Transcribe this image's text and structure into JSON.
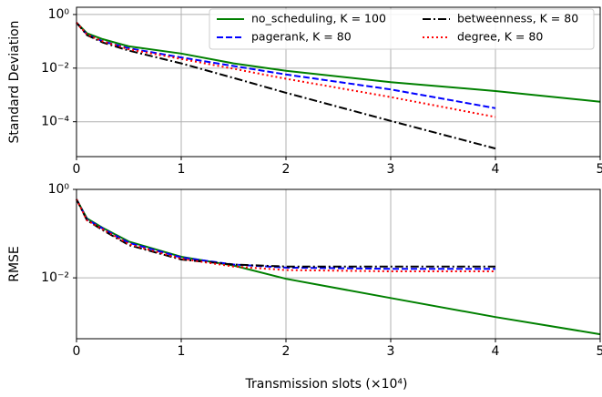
{
  "chart_data": [
    {
      "type": "line",
      "ylabel": "Standard Deviation",
      "yscale": "log",
      "grid": true,
      "legend": "upper right",
      "legend_columns": 2,
      "x": [
        0,
        0.1,
        0.25,
        0.5,
        1,
        1.5,
        2,
        3,
        4,
        5
      ],
      "xlim": [
        0,
        5
      ],
      "xticks": [
        0,
        1,
        2,
        3,
        4,
        5
      ],
      "ylim": [
        5e-06,
        1.86
      ],
      "yticks": [
        {
          "value": 1,
          "label": "10⁰"
        },
        {
          "value": 0.01,
          "label": "10⁻²"
        },
        {
          "value": 0.0001,
          "label": "10⁻⁴"
        }
      ],
      "series": [
        {
          "name": "no_scheduling, K = 100",
          "color": "#008000",
          "linestyle": "solid",
          "values": [
            0.5,
            0.2,
            0.12,
            0.065,
            0.035,
            0.015,
            0.008,
            0.003,
            0.0014,
            0.00056
          ]
        },
        {
          "name": "pagerank, K = 80",
          "color": "#0000ff",
          "linestyle": "dashed",
          "values": [
            0.5,
            0.18,
            0.1,
            0.055,
            0.025,
            0.012,
            0.0058,
            0.0016,
            0.00032,
            null
          ]
        },
        {
          "name": "betweenness, K = 80",
          "color": "#000000",
          "linestyle": "dashdot",
          "values": [
            0.5,
            0.17,
            0.09,
            0.045,
            0.015,
            0.0043,
            0.0012,
            0.000107,
            1e-05,
            null
          ]
        },
        {
          "name": "degree, K = 80",
          "color": "#ff0000",
          "linestyle": "dotted",
          "values": [
            0.5,
            0.18,
            0.1,
            0.05,
            0.022,
            0.0095,
            0.004,
            0.00083,
            0.00015,
            null
          ]
        }
      ]
    },
    {
      "type": "line",
      "ylabel": "RMSE",
      "xlabel": "Transmission slots (×10⁴)",
      "yscale": "log",
      "grid": true,
      "x": [
        0,
        0.1,
        0.25,
        0.5,
        1,
        1.5,
        2,
        3,
        4,
        5
      ],
      "xlim": [
        0,
        5
      ],
      "xticks": [
        0,
        1,
        2,
        3,
        4,
        5
      ],
      "ylim": [
        0.00042,
        1
      ],
      "yticks": [
        {
          "value": 1,
          "label": "10⁰"
        },
        {
          "value": 0.01,
          "label": "10⁻²"
        }
      ],
      "series": [
        {
          "color": "#008000",
          "linestyle": "solid",
          "values": [
            0.6,
            0.22,
            0.135,
            0.066,
            0.03,
            0.019,
            0.0095,
            0.0035,
            0.0013,
            0.00053
          ]
        },
        {
          "color": "#0000ff",
          "linestyle": "dashed",
          "values": [
            0.6,
            0.21,
            0.13,
            0.062,
            0.029,
            0.02,
            0.017,
            0.016,
            0.016,
            null
          ]
        },
        {
          "color": "#000000",
          "linestyle": "dashdot",
          "values": [
            0.6,
            0.2,
            0.12,
            0.055,
            0.026,
            0.02,
            0.018,
            0.018,
            0.018,
            null
          ]
        },
        {
          "color": "#ff0000",
          "linestyle": "dotted",
          "values": [
            0.6,
            0.2,
            0.125,
            0.058,
            0.027,
            0.018,
            0.015,
            0.014,
            0.014,
            null
          ]
        }
      ]
    }
  ]
}
